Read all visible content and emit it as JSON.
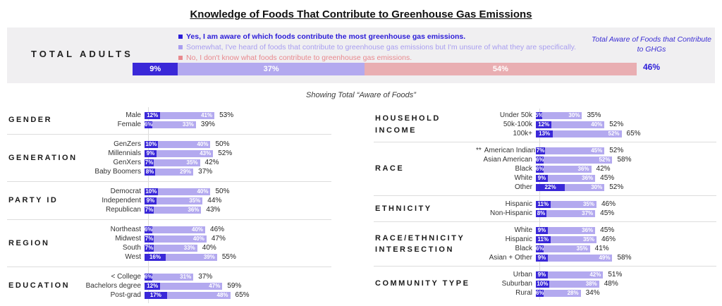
{
  "title": "Knowledge of Foods That Contribute to Greenhouse Gas Emissions",
  "subtitle": "Showing Total “Aware of Foods”",
  "header": {
    "label": "TOTAL ADULTS",
    "note_line": "Total Aware of Foods that Contribute to GHGs",
    "note_value": "46%"
  },
  "legend": [
    {
      "label": "Yes, I am aware of which foods contribute the most greenhouse gas emissions.",
      "color": "#2b1cd8"
    },
    {
      "label": "Somewhat, I've heard of foods that contribute to greenhouse gas emissions but I'm unsure of what they are specifically.",
      "color": "#a89ef0"
    },
    {
      "label": "No, I don't know what foods contribute to greenhouse gas emissions.",
      "color": "#e8898e"
    }
  ],
  "colors": {
    "yes_bar": "#3a28d8",
    "somewhat_bar": "#b3a9ef",
    "no_bar": "#e9aeb2",
    "note_text": "#3b2fd4",
    "note_value_text": "#2b1cd8"
  },
  "chart_data": {
    "type": "bar",
    "stacked": true,
    "unit": "%",
    "series": [
      "Yes, aware",
      "Somewhat, heard of",
      "No, don't know"
    ],
    "total_adults": {
      "yes": 9,
      "somewhat": 37,
      "no": 54,
      "total_aware": 46
    },
    "groups": [
      {
        "name": "GENDER",
        "column": "left",
        "rows": [
          {
            "label": "Male",
            "yes": 12,
            "somewhat": 41,
            "total": 53
          },
          {
            "label": "Female",
            "yes": 6,
            "somewhat": 33,
            "total": 39
          }
        ]
      },
      {
        "name": "GENERATION",
        "column": "left",
        "rows": [
          {
            "label": "GenZers",
            "yes": 10,
            "somewhat": 40,
            "total": 50
          },
          {
            "label": "Millennials",
            "yes": 9,
            "somewhat": 43,
            "total": 52
          },
          {
            "label": "GenXers",
            "yes": 7,
            "somewhat": 35,
            "total": 42
          },
          {
            "label": "Baby Boomers",
            "yes": 8,
            "somewhat": 29,
            "total": 37
          }
        ]
      },
      {
        "name": "PARTY ID",
        "column": "left",
        "rows": [
          {
            "label": "Democrat",
            "yes": 10,
            "somewhat": 40,
            "total": 50
          },
          {
            "label": "Independent",
            "yes": 9,
            "somewhat": 35,
            "total": 44
          },
          {
            "label": "Republican",
            "yes": 7,
            "somewhat": 36,
            "total": 43
          }
        ]
      },
      {
        "name": "REGION",
        "column": "left",
        "rows": [
          {
            "label": "Northeast",
            "yes": 6,
            "somewhat": 40,
            "total": 46
          },
          {
            "label": "Midwest",
            "yes": 7,
            "somewhat": 40,
            "total": 47
          },
          {
            "label": "South",
            "yes": 7,
            "somewhat": 33,
            "total": 40
          },
          {
            "label": "West",
            "yes": 16,
            "somewhat": 39,
            "total": 55
          }
        ]
      },
      {
        "name": "EDUCATION",
        "column": "left",
        "rows": [
          {
            "label": "< College",
            "yes": 6,
            "somewhat": 31,
            "total": 37
          },
          {
            "label": "Bachelors degree",
            "yes": 12,
            "somewhat": 47,
            "total": 59
          },
          {
            "label": "Post-grad",
            "yes": 17,
            "somewhat": 48,
            "total": 65
          }
        ]
      },
      {
        "name": "HOUSEHOLD INCOME",
        "column": "right",
        "rows": [
          {
            "label": "Under 50k",
            "yes": 5,
            "somewhat": 30,
            "total": 35
          },
          {
            "label": "50k-100k",
            "yes": 12,
            "somewhat": 40,
            "total": 52
          },
          {
            "label": "100k+",
            "yes": 13,
            "somewhat": 52,
            "total": 65
          }
        ]
      },
      {
        "name": "RACE",
        "column": "right",
        "rows": [
          {
            "label": "American Indian",
            "prefix": "**",
            "yes": 7,
            "somewhat": 45,
            "total": 52
          },
          {
            "label": "Asian American",
            "yes": 6,
            "somewhat": 52,
            "total": 58
          },
          {
            "label": "Black",
            "yes": 6,
            "somewhat": 36,
            "total": 42
          },
          {
            "label": "White",
            "yes": 9,
            "somewhat": 36,
            "total": 45
          },
          {
            "label": "Other",
            "yes": 22,
            "somewhat": 30,
            "total": 52
          }
        ]
      },
      {
        "name": "ETHNICITY",
        "column": "right",
        "rows": [
          {
            "label": "Hispanic",
            "yes": 11,
            "somewhat": 35,
            "total": 46
          },
          {
            "label": "Non-Hispanic",
            "yes": 8,
            "somewhat": 37,
            "total": 45
          }
        ]
      },
      {
        "name": "RACE/ETHNICITY INTERSECTION",
        "column": "right",
        "rows": [
          {
            "label": "White",
            "yes": 9,
            "somewhat": 36,
            "total": 45
          },
          {
            "label": "Hispanic",
            "yes": 11,
            "somewhat": 35,
            "total": 46
          },
          {
            "label": "Black",
            "yes": 6,
            "somewhat": 35,
            "total": 41
          },
          {
            "label": "Asian + Other",
            "yes": 9,
            "somewhat": 49,
            "total": 58
          }
        ]
      },
      {
        "name": "COMMUNITY TYPE",
        "column": "right",
        "rows": [
          {
            "label": "Urban",
            "yes": 9,
            "somewhat": 42,
            "total": 51
          },
          {
            "label": "Suburban",
            "yes": 10,
            "somewhat": 38,
            "total": 48
          },
          {
            "label": "Rural",
            "yes": 6,
            "somewhat": 28,
            "total": 34
          }
        ]
      }
    ]
  }
}
